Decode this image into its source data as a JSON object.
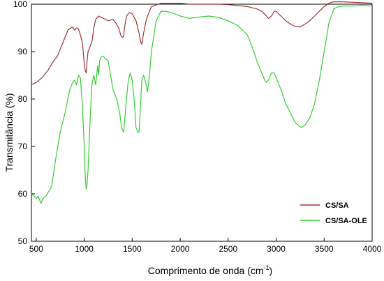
{
  "chart_data": {
    "type": "line",
    "xlabel": "Comprimento de onda (cm",
    "xlabel_sup": "-1",
    "xlabel_close": ")",
    "ylabel": "Transmitância (%)",
    "xlim": [
      450,
      4000
    ],
    "ylim": [
      50,
      100
    ],
    "x_ticks": [
      500,
      1000,
      1500,
      2000,
      2500,
      3000,
      3500,
      4000
    ],
    "y_ticks": [
      50,
      60,
      70,
      80,
      90,
      100
    ],
    "grid": false,
    "legend_position": "bottom-right",
    "series": [
      {
        "name": "CS/SA",
        "color": "#993333",
        "x": [
          450,
          500,
          560,
          620,
          680,
          720,
          760,
          800,
          830,
          860,
          880,
          900,
          920,
          940,
          960,
          980,
          990,
          1000,
          1010,
          1020,
          1030,
          1040,
          1060,
          1080,
          1100,
          1120,
          1150,
          1180,
          1200,
          1250,
          1300,
          1330,
          1360,
          1380,
          1400,
          1410,
          1420,
          1440,
          1470,
          1500,
          1540,
          1570,
          1590,
          1600,
          1620,
          1650,
          1700,
          1800,
          1900,
          2000,
          2100,
          2200,
          2300,
          2400,
          2500,
          2600,
          2700,
          2800,
          2850,
          2900,
          2920,
          2950,
          2980,
          3000,
          3050,
          3100,
          3150,
          3200,
          3250,
          3300,
          3350,
          3400,
          3450,
          3500,
          3550,
          3600,
          3700,
          3800,
          3900,
          4000
        ],
        "y": [
          83,
          83.5,
          84.5,
          86,
          88,
          89,
          91,
          93,
          94.5,
          95,
          95.2,
          94.5,
          95,
          94.8,
          93.5,
          92,
          90,
          87.5,
          86,
          85.5,
          88,
          90,
          91,
          92,
          95,
          96.8,
          97.5,
          97.2,
          97,
          96.5,
          96.8,
          96,
          95,
          93.5,
          93,
          93.2,
          95,
          97.5,
          98.2,
          98,
          96.5,
          94,
          92,
          91.5,
          94,
          97,
          99.5,
          100.2,
          100.2,
          100.2,
          100,
          100,
          100,
          100,
          99.9,
          99.7,
          99.5,
          99,
          98.5,
          97.5,
          97,
          97.5,
          98.5,
          98.5,
          97.5,
          96.5,
          95.8,
          95.3,
          95.2,
          95.8,
          96.5,
          97.5,
          98.5,
          99.5,
          100.2,
          100.5,
          100.5,
          100.4,
          100.3,
          100.2
        ]
      },
      {
        "name": "CS/SA-OLE",
        "color": "#33cc33",
        "x": [
          450,
          480,
          500,
          520,
          550,
          570,
          600,
          630,
          660,
          700,
          750,
          800,
          850,
          880,
          900,
          920,
          940,
          960,
          980,
          1000,
          1010,
          1020,
          1030,
          1040,
          1060,
          1080,
          1100,
          1120,
          1140,
          1150,
          1160,
          1180,
          1200,
          1220,
          1250,
          1300,
          1340,
          1370,
          1390,
          1410,
          1420,
          1440,
          1460,
          1480,
          1500,
          1520,
          1540,
          1560,
          1570,
          1580,
          1600,
          1620,
          1640,
          1660,
          1680,
          1700,
          1750,
          1800,
          1850,
          1900,
          2000,
          2100,
          2200,
          2300,
          2400,
          2500,
          2600,
          2700,
          2750,
          2800,
          2850,
          2880,
          2900,
          2920,
          2950,
          2980,
          3000,
          3050,
          3100,
          3150,
          3200,
          3230,
          3260,
          3300,
          3350,
          3400,
          3450,
          3500,
          3550,
          3600,
          3650,
          3700,
          3800,
          3900,
          4000
        ],
        "y": [
          60,
          59.5,
          59,
          59.5,
          58,
          59,
          59.5,
          60.5,
          61.5,
          67,
          73,
          77,
          82,
          83.5,
          84,
          83,
          85,
          84.5,
          79,
          70,
          64,
          61,
          62,
          65,
          75,
          83,
          85,
          83,
          87,
          85,
          88,
          89,
          89,
          88.5,
          88,
          82,
          80,
          77,
          74,
          73,
          75,
          80,
          84,
          85.5,
          84,
          80,
          74,
          73,
          73,
          76,
          84,
          85,
          83.5,
          81.5,
          85,
          90,
          96.5,
          98.5,
          98.5,
          98.3,
          97.5,
          97,
          97.3,
          97.5,
          97.2,
          96.5,
          95.5,
          93.5,
          91,
          88,
          85.5,
          84,
          83.5,
          84,
          85.5,
          85.5,
          84.5,
          82,
          79,
          77,
          75,
          74.5,
          74,
          74.5,
          76,
          79,
          84,
          90,
          96,
          99,
          99.5,
          99.6,
          99.6,
          99.7,
          99.6
        ]
      }
    ]
  }
}
